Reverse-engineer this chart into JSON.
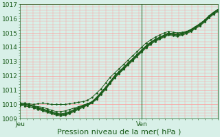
{
  "bg_color": "#d8f0e8",
  "grid_color": "#ff9999",
  "line_color": "#1a5c1a",
  "marker_color": "#1a5c1a",
  "xlabel": "Pression niveau de la mer( hPa )",
  "xlabel_fontsize": 8,
  "tick_label_fontsize": 6.5,
  "x_tick_labels": [
    "Jeu",
    "Ven"
  ],
  "x_tick_positions": [
    0.0,
    0.615
  ],
  "vline_x": 0.615,
  "ylim": [
    1009,
    1017
  ],
  "yticks": [
    1009,
    1010,
    1011,
    1012,
    1013,
    1014,
    1015,
    1016,
    1017
  ],
  "series": [
    [
      1010.1,
      1010.1,
      1010.05,
      1010.0,
      1010.05,
      1010.1,
      1010.05,
      1010.0,
      1010.0,
      1010.0,
      1010.0,
      1010.05,
      1010.1,
      1010.15,
      1010.2,
      1010.3,
      1010.5,
      1010.8,
      1011.1,
      1011.5,
      1011.9,
      1012.2,
      1012.5,
      1012.8,
      1013.1,
      1013.4,
      1013.7,
      1014.0,
      1014.3,
      1014.5,
      1014.7,
      1014.85,
      1015.0,
      1015.1,
      1015.05,
      1015.0,
      1015.05,
      1015.1,
      1015.2,
      1015.4,
      1015.6,
      1015.85,
      1016.15,
      1016.4,
      1016.65
    ],
    [
      1010.0,
      1010.0,
      1009.95,
      1009.9,
      1009.85,
      1009.8,
      1009.7,
      1009.6,
      1009.5,
      1009.5,
      1009.55,
      1009.65,
      1009.75,
      1009.85,
      1009.95,
      1010.05,
      1010.2,
      1010.5,
      1010.85,
      1011.2,
      1011.6,
      1012.0,
      1012.3,
      1012.6,
      1012.9,
      1013.2,
      1013.5,
      1013.8,
      1014.1,
      1014.35,
      1014.55,
      1014.7,
      1014.85,
      1015.0,
      1014.95,
      1014.9,
      1015.0,
      1015.1,
      1015.25,
      1015.45,
      1015.65,
      1015.9,
      1016.2,
      1016.45,
      1016.65
    ],
    [
      1010.05,
      1010.0,
      1009.95,
      1009.85,
      1009.75,
      1009.65,
      1009.55,
      1009.45,
      1009.35,
      1009.3,
      1009.35,
      1009.45,
      1009.6,
      1009.75,
      1009.9,
      1010.0,
      1010.15,
      1010.45,
      1010.8,
      1011.15,
      1011.55,
      1011.95,
      1012.25,
      1012.55,
      1012.85,
      1013.15,
      1013.45,
      1013.75,
      1014.05,
      1014.3,
      1014.5,
      1014.65,
      1014.8,
      1014.95,
      1014.9,
      1014.85,
      1014.95,
      1015.05,
      1015.2,
      1015.4,
      1015.6,
      1015.85,
      1016.15,
      1016.4,
      1016.6
    ],
    [
      1009.95,
      1009.9,
      1009.85,
      1009.75,
      1009.65,
      1009.55,
      1009.45,
      1009.35,
      1009.25,
      1009.2,
      1009.25,
      1009.35,
      1009.5,
      1009.65,
      1009.8,
      1009.95,
      1010.1,
      1010.4,
      1010.75,
      1011.1,
      1011.5,
      1011.9,
      1012.2,
      1012.5,
      1012.8,
      1013.1,
      1013.4,
      1013.7,
      1014.0,
      1014.25,
      1014.45,
      1014.6,
      1014.75,
      1014.9,
      1014.85,
      1014.8,
      1014.9,
      1015.0,
      1015.15,
      1015.35,
      1015.55,
      1015.8,
      1016.1,
      1016.35,
      1016.55
    ],
    [
      1010.1,
      1010.05,
      1010.0,
      1009.9,
      1009.8,
      1009.7,
      1009.6,
      1009.5,
      1009.4,
      1009.35,
      1009.4,
      1009.5,
      1009.65,
      1009.8,
      1009.95,
      1010.05,
      1010.2,
      1010.5,
      1010.85,
      1011.2,
      1011.6,
      1012.0,
      1012.3,
      1012.6,
      1012.9,
      1013.2,
      1013.5,
      1013.8,
      1014.1,
      1014.35,
      1014.55,
      1014.7,
      1014.85,
      1015.0,
      1014.95,
      1014.9,
      1015.0,
      1015.1,
      1015.25,
      1015.45,
      1015.65,
      1015.9,
      1016.2,
      1016.45,
      1016.65
    ],
    [
      1010.0,
      1010.0,
      1009.95,
      1009.85,
      1009.75,
      1009.65,
      1009.55,
      1009.45,
      1009.35,
      1009.3,
      1009.35,
      1009.45,
      1009.6,
      1009.75,
      1009.9,
      1010.0,
      1010.15,
      1010.45,
      1010.8,
      1011.15,
      1011.55,
      1011.95,
      1012.25,
      1012.55,
      1012.85,
      1013.15,
      1013.45,
      1013.75,
      1014.05,
      1014.3,
      1014.5,
      1014.65,
      1014.8,
      1014.95,
      1014.9,
      1014.85,
      1014.95,
      1015.05,
      1015.2,
      1015.4,
      1015.6,
      1015.85,
      1016.15,
      1016.4,
      1016.6
    ],
    [
      1009.95,
      1009.9,
      1009.85,
      1009.8,
      1009.7,
      1009.6,
      1009.5,
      1009.4,
      1009.3,
      1009.25,
      1009.3,
      1009.4,
      1009.55,
      1009.7,
      1009.85,
      1009.95,
      1010.1,
      1010.35,
      1010.7,
      1011.05,
      1011.45,
      1011.85,
      1012.15,
      1012.45,
      1012.75,
      1013.05,
      1013.35,
      1013.65,
      1013.95,
      1014.2,
      1014.4,
      1014.55,
      1014.7,
      1014.85,
      1014.8,
      1014.75,
      1014.85,
      1014.95,
      1015.1,
      1015.3,
      1015.5,
      1015.75,
      1016.05,
      1016.3,
      1016.5
    ]
  ],
  "n_points": 45,
  "xlim": [
    0.0,
    1.0
  ]
}
